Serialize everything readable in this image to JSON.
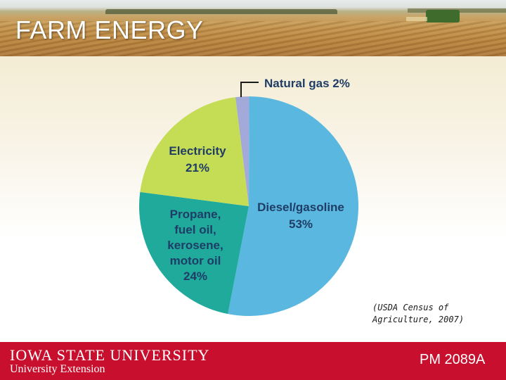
{
  "header": {
    "title": "FARM  ENERGY"
  },
  "chart_data": {
    "type": "pie",
    "slices": [
      {
        "name": "Natural gas 2%",
        "lines": [
          "Natural gas 2%"
        ],
        "value": 2,
        "color": "#a3a9d9"
      },
      {
        "name": "Diesel/gasoline 53%",
        "lines": [
          "Diesel/gasoline",
          "53%"
        ],
        "value": 53,
        "color": "#5ab8e0"
      },
      {
        "name": "Propane, fuel oil, kerosene, motor oil 24%",
        "lines": [
          "Propane,",
          "fuel oil,",
          "kerosene,",
          "motor oil",
          "24%"
        ],
        "value": 24,
        "color": "#1faa9b"
      },
      {
        "name": "Electricity 21%",
        "lines": [
          "Electricity",
          "21%"
        ],
        "value": 21,
        "color": "#c5dc55"
      }
    ],
    "start_angle_deg": -7,
    "label_color": "#1f3d66"
  },
  "source": {
    "line1": "(USDA Census of",
    "line2": "Agriculture, 2007)"
  },
  "footer": {
    "university": "IOWA STATE UNIVERSITY",
    "extension": "University Extension",
    "code": "PM 2089A",
    "color": "#c8102e"
  }
}
